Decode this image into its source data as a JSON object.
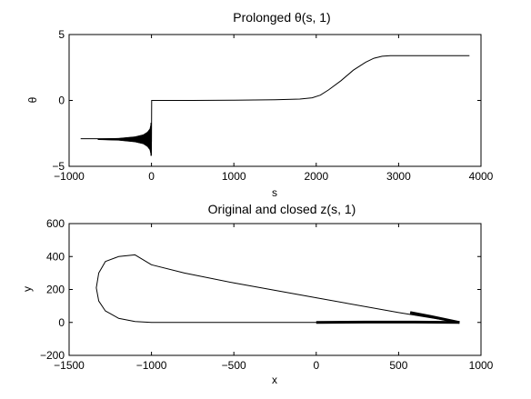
{
  "chart_data": [
    {
      "type": "line",
      "title": "Prolonged θ(s, 1)",
      "xlabel": "s",
      "ylabel": "θ",
      "xlim": [
        -1000,
        4000
      ],
      "ylim": [
        -5,
        5
      ],
      "xticks": [
        -1000,
        0,
        1000,
        2000,
        3000,
        4000
      ],
      "xtick_labels": [
        "−1000",
        "0",
        "1000",
        "2000",
        "3000",
        "4000"
      ],
      "yticks": [
        -5,
        0,
        5
      ],
      "ytick_labels": [
        "−5",
        "0",
        "5"
      ],
      "grid": false,
      "color": "#000000",
      "series": [
        {
          "x": [
            -860,
            -700,
            -500,
            -300,
            -150,
            -80,
            -30,
            -10,
            0,
            2,
            200,
            500,
            1000,
            1500,
            1800,
            1950,
            2050,
            2150,
            2300,
            2450,
            2600,
            2700,
            2800,
            2900,
            3200,
            3500,
            3860
          ],
          "y": [
            -2.9,
            -2.9,
            -2.9,
            -2.92,
            -2.95,
            -2.97,
            -3.0,
            -3.05,
            -3.1,
            0.0,
            0.0,
            0.0,
            0.02,
            0.05,
            0.1,
            0.2,
            0.4,
            0.8,
            1.5,
            2.3,
            2.9,
            3.2,
            3.35,
            3.4,
            3.4,
            3.4,
            3.4
          ]
        }
      ],
      "oscillation_band": {
        "x": [
          -650,
          -400,
          -200,
          -100,
          -50,
          -20,
          -5
        ],
        "amplitude": [
          0.03,
          0.08,
          0.2,
          0.35,
          0.55,
          0.8,
          1.2
        ],
        "center": -2.95
      }
    },
    {
      "type": "line",
      "title": "Original and closed z(s, 1)",
      "xlabel": "x",
      "ylabel": "y",
      "xlim": [
        -1500,
        1000
      ],
      "ylim": [
        -200,
        600
      ],
      "xticks": [
        -1500,
        -1000,
        -500,
        0,
        500,
        1000
      ],
      "xtick_labels": [
        "−1500",
        "−1000",
        "−500",
        "0",
        "500",
        "1000"
      ],
      "yticks": [
        -200,
        0,
        200,
        400,
        600
      ],
      "ytick_labels": [
        "−200",
        "0",
        "200",
        "400",
        "600"
      ],
      "grid": false,
      "color": "#000000",
      "series": [
        {
          "x": [
            870,
            500,
            0,
            -500,
            -800,
            -1000,
            -1100,
            -1200,
            -1280,
            -1320,
            -1335,
            -1320,
            -1280,
            -1200,
            -1100,
            -1000,
            -800,
            -500,
            0,
            500,
            870
          ],
          "y": [
            0,
            60,
            150,
            240,
            300,
            350,
            410,
            400,
            370,
            300,
            210,
            130,
            70,
            25,
            5,
            0,
            0,
            0,
            0,
            0,
            0
          ]
        },
        {
          "name_hidden": "thick",
          "x": [
            0,
            300,
            600,
            870
          ],
          "y": [
            0,
            2,
            2,
            0
          ]
        },
        {
          "name_hidden": "thick-diag",
          "x": [
            570,
            700,
            870
          ],
          "y": [
            60,
            35,
            0
          ]
        }
      ]
    }
  ]
}
